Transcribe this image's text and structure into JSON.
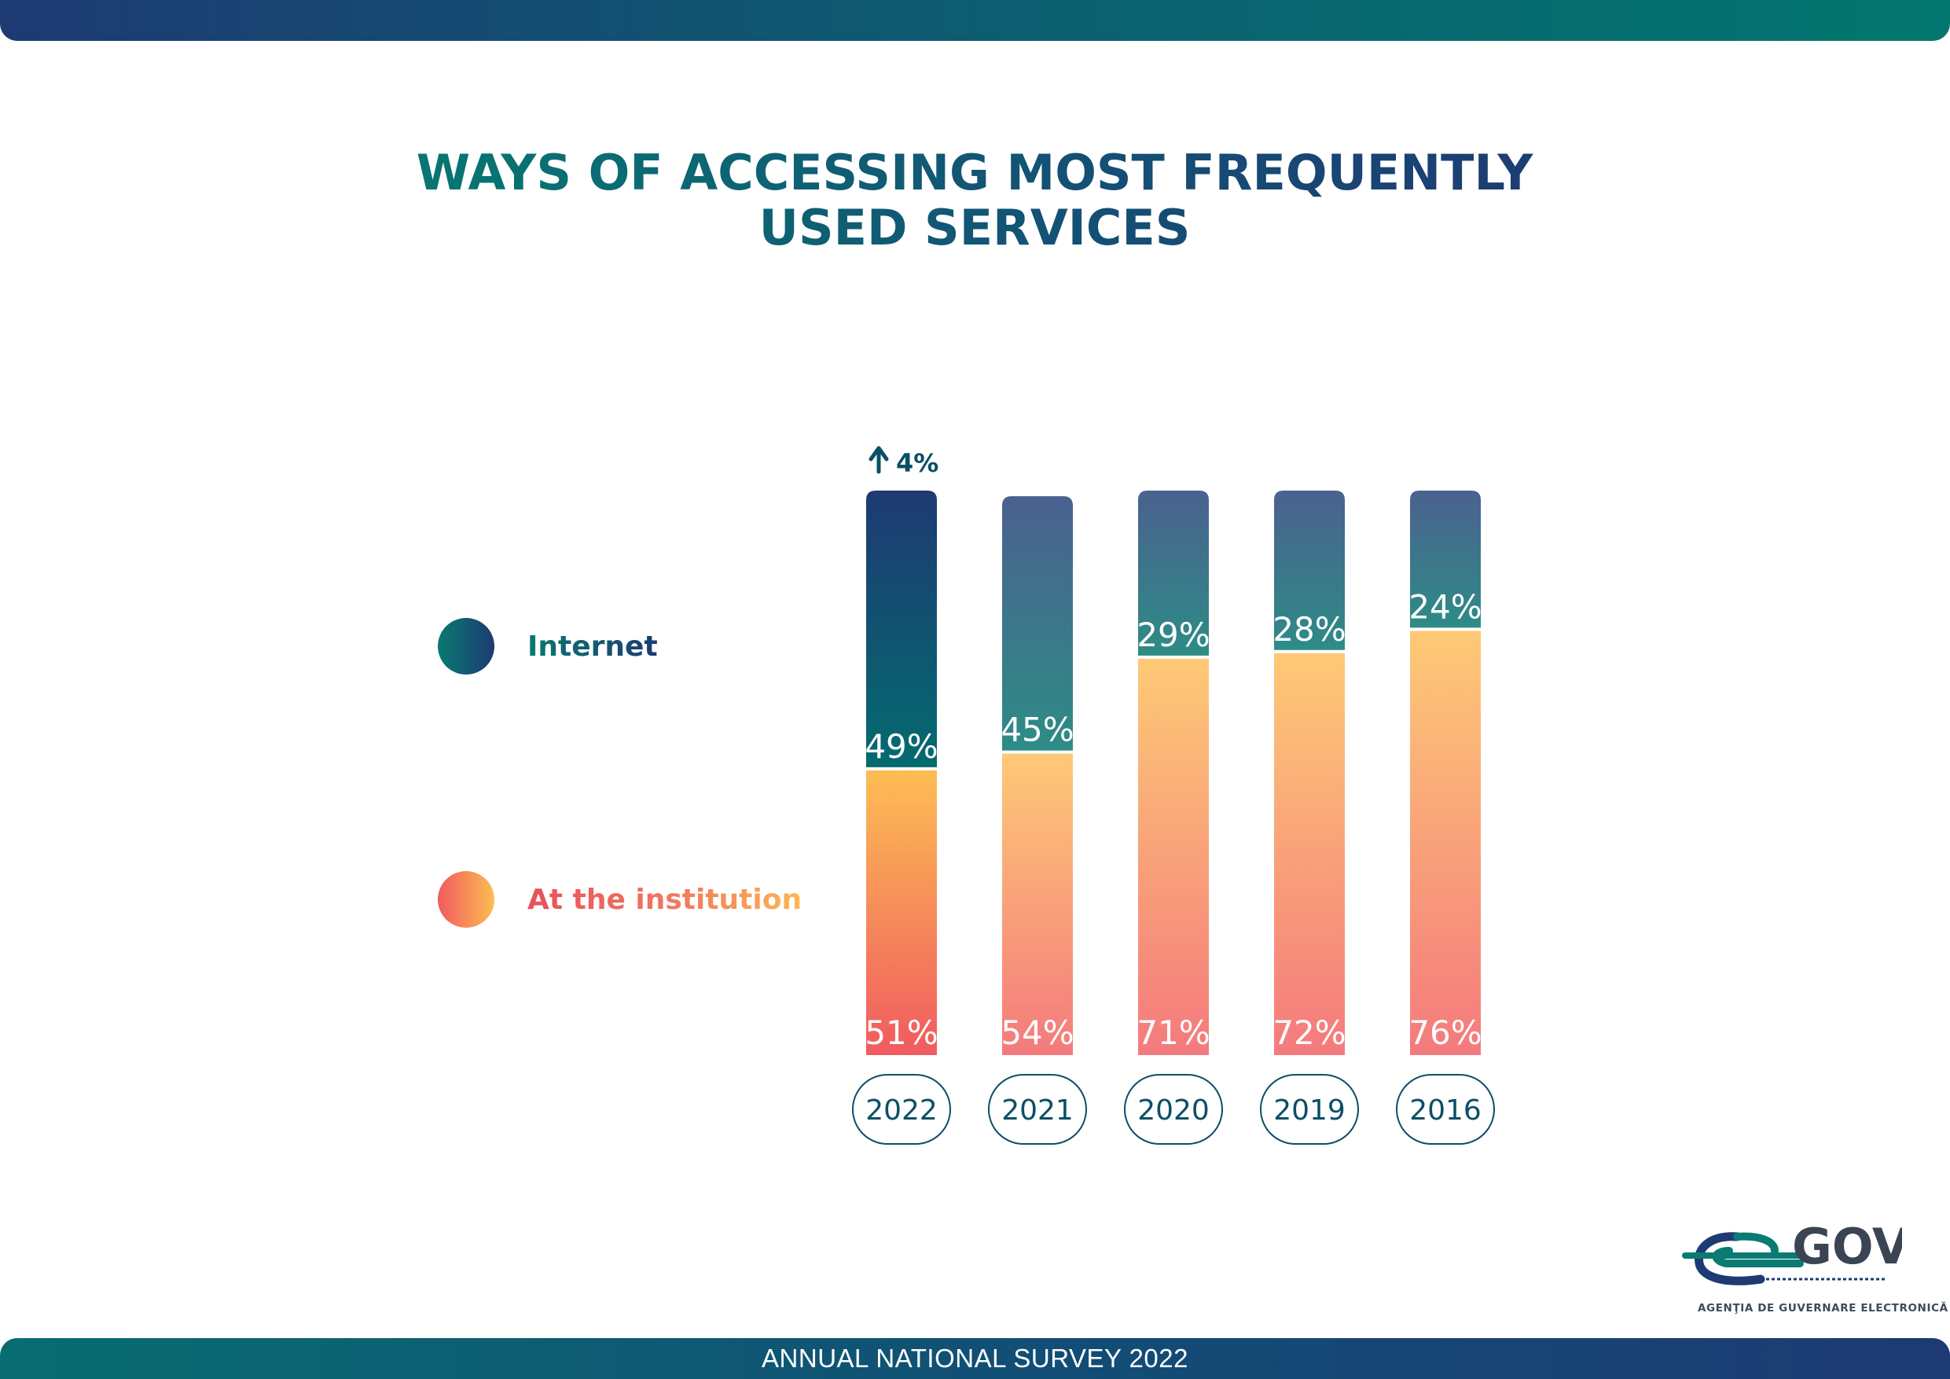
{
  "header": {
    "title_line1": "WAYS OF ACCESSING MOST FREQUENTLY",
    "title_line2": "USED SERVICES"
  },
  "legend": {
    "internet": "Internet",
    "institution": "At the institution"
  },
  "footer": {
    "text": "ANNUAL NATIONAL SURVEY 2022"
  },
  "logo": {
    "mark": "GOV",
    "caption": "AGENŢIA DE GUVERNARE ELECTRONICĂ"
  },
  "colors": {
    "teal": "#087a70",
    "navy": "#1e3a73",
    "orange": "#fdbd54",
    "coral": "#f15a5e"
  },
  "chart_data": {
    "type": "bar",
    "stacked": true,
    "categories": [
      "2022",
      "2021",
      "2020",
      "2019",
      "2016"
    ],
    "series": [
      {
        "name": "At the institution",
        "values": [
          51,
          54,
          71,
          72,
          76
        ]
      },
      {
        "name": "Internet",
        "values": [
          49,
          45,
          29,
          28,
          24
        ]
      }
    ],
    "value_labels_institution": [
      "51%",
      "54%",
      "71%",
      "72%",
      "76%"
    ],
    "value_labels_internet": [
      "49%",
      "45%",
      "29%",
      "28%",
      "24%"
    ],
    "annotation": {
      "category": "2022",
      "text": "4%",
      "direction": "up"
    },
    "title": "WAYS OF ACCESSING MOST FREQUENTLY USED SERVICES",
    "ylim": [
      0,
      100
    ],
    "grid": false,
    "legend_position": "left"
  }
}
